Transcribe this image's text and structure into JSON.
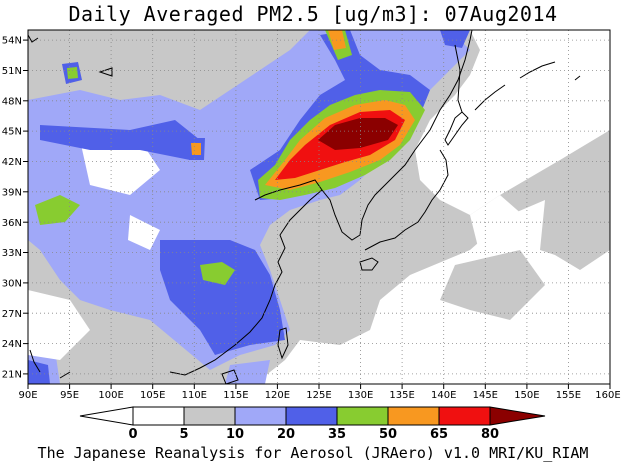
{
  "title": "Daily Averaged PM2.5 [ug/m3]: 07Aug2014",
  "footer": "The Japanese Reanalysis for Aerosol (JRAero) v1.0 MRI/KU_RIAM",
  "map": {
    "lon_range": [
      90,
      160
    ],
    "lat_range": [
      20,
      55
    ],
    "x_ticks": [
      "90E",
      "95E",
      "100E",
      "105E",
      "110E",
      "115E",
      "120E",
      "125E",
      "130E",
      "135E",
      "140E",
      "145E",
      "150E",
      "155E",
      "160E"
    ],
    "y_ticks": [
      "21N",
      "24N",
      "27N",
      "30N",
      "33N",
      "36N",
      "39N",
      "42N",
      "45N",
      "48N",
      "51N",
      "54N"
    ],
    "grid": "dotted",
    "hotspot_lon_lat": [
      130,
      45
    ]
  },
  "colorbar": {
    "labels": [
      "0",
      "5",
      "10",
      "20",
      "35",
      "50",
      "65",
      "80"
    ],
    "colors": [
      "#ffffff",
      "#c8c8c8",
      "#a0a8f8",
      "#5060e8",
      "#88cc30",
      "#f89820",
      "#f01010",
      "#8b0000"
    ]
  },
  "colors": {
    "level_5": "#c8c8c8",
    "level_10": "#a0a8f8",
    "level_20": "#5060e8",
    "level_35": "#88cc30",
    "level_50": "#f89820",
    "level_65": "#f01010",
    "level_80": "#8b0000"
  }
}
